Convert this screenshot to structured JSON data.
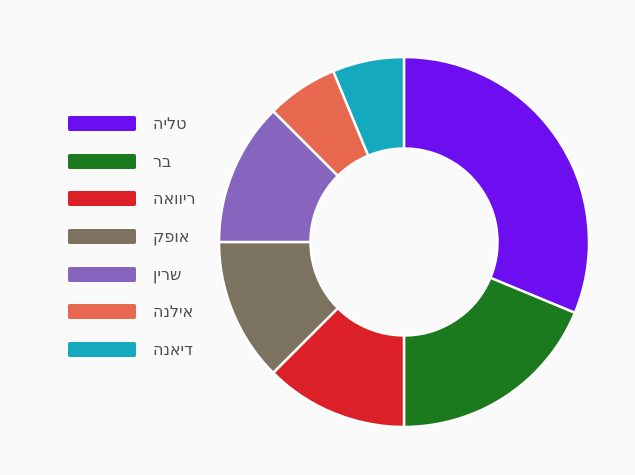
{
  "page": {
    "background_color": "#fafafa",
    "title": ""
  },
  "chart_data": {
    "type": "pie",
    "subtype": "donut",
    "title": "",
    "legend_position": "left",
    "direction": "clockwise",
    "start_angle_deg": 0,
    "inner_radius_ratio": 0.5,
    "border_color": "#ffffff",
    "categories": [
      "טליה",
      "בר",
      "ריוואה",
      "אופק",
      "שרין",
      "אילנה",
      "דיאנה"
    ],
    "values": [
      31.25,
      18.75,
      12.5,
      12.5,
      12.5,
      6.25,
      6.25
    ],
    "values_unit": "percent",
    "segments": [
      {
        "id": "talia",
        "label": "טליה",
        "percent": 31.25,
        "color": "#6d0ef1"
      },
      {
        "id": "bar",
        "label": "בר",
        "percent": 18.75,
        "color": "#1b7a1d"
      },
      {
        "id": "rivaa",
        "label": "ריוואה",
        "percent": 12.5,
        "color": "#dc2027"
      },
      {
        "id": "ofek",
        "label": "אופק",
        "percent": 12.5,
        "color": "#7b7260"
      },
      {
        "id": "sharin",
        "label": "שרין",
        "percent": 12.5,
        "color": "#8765be"
      },
      {
        "id": "ilana",
        "label": "אילנה",
        "percent": 6.25,
        "color": "#e7684e"
      },
      {
        "id": "diana",
        "label": "דיאנה",
        "percent": 6.25,
        "color": "#14a9be"
      }
    ],
    "legend_label_color": "#4d4d4d"
  }
}
